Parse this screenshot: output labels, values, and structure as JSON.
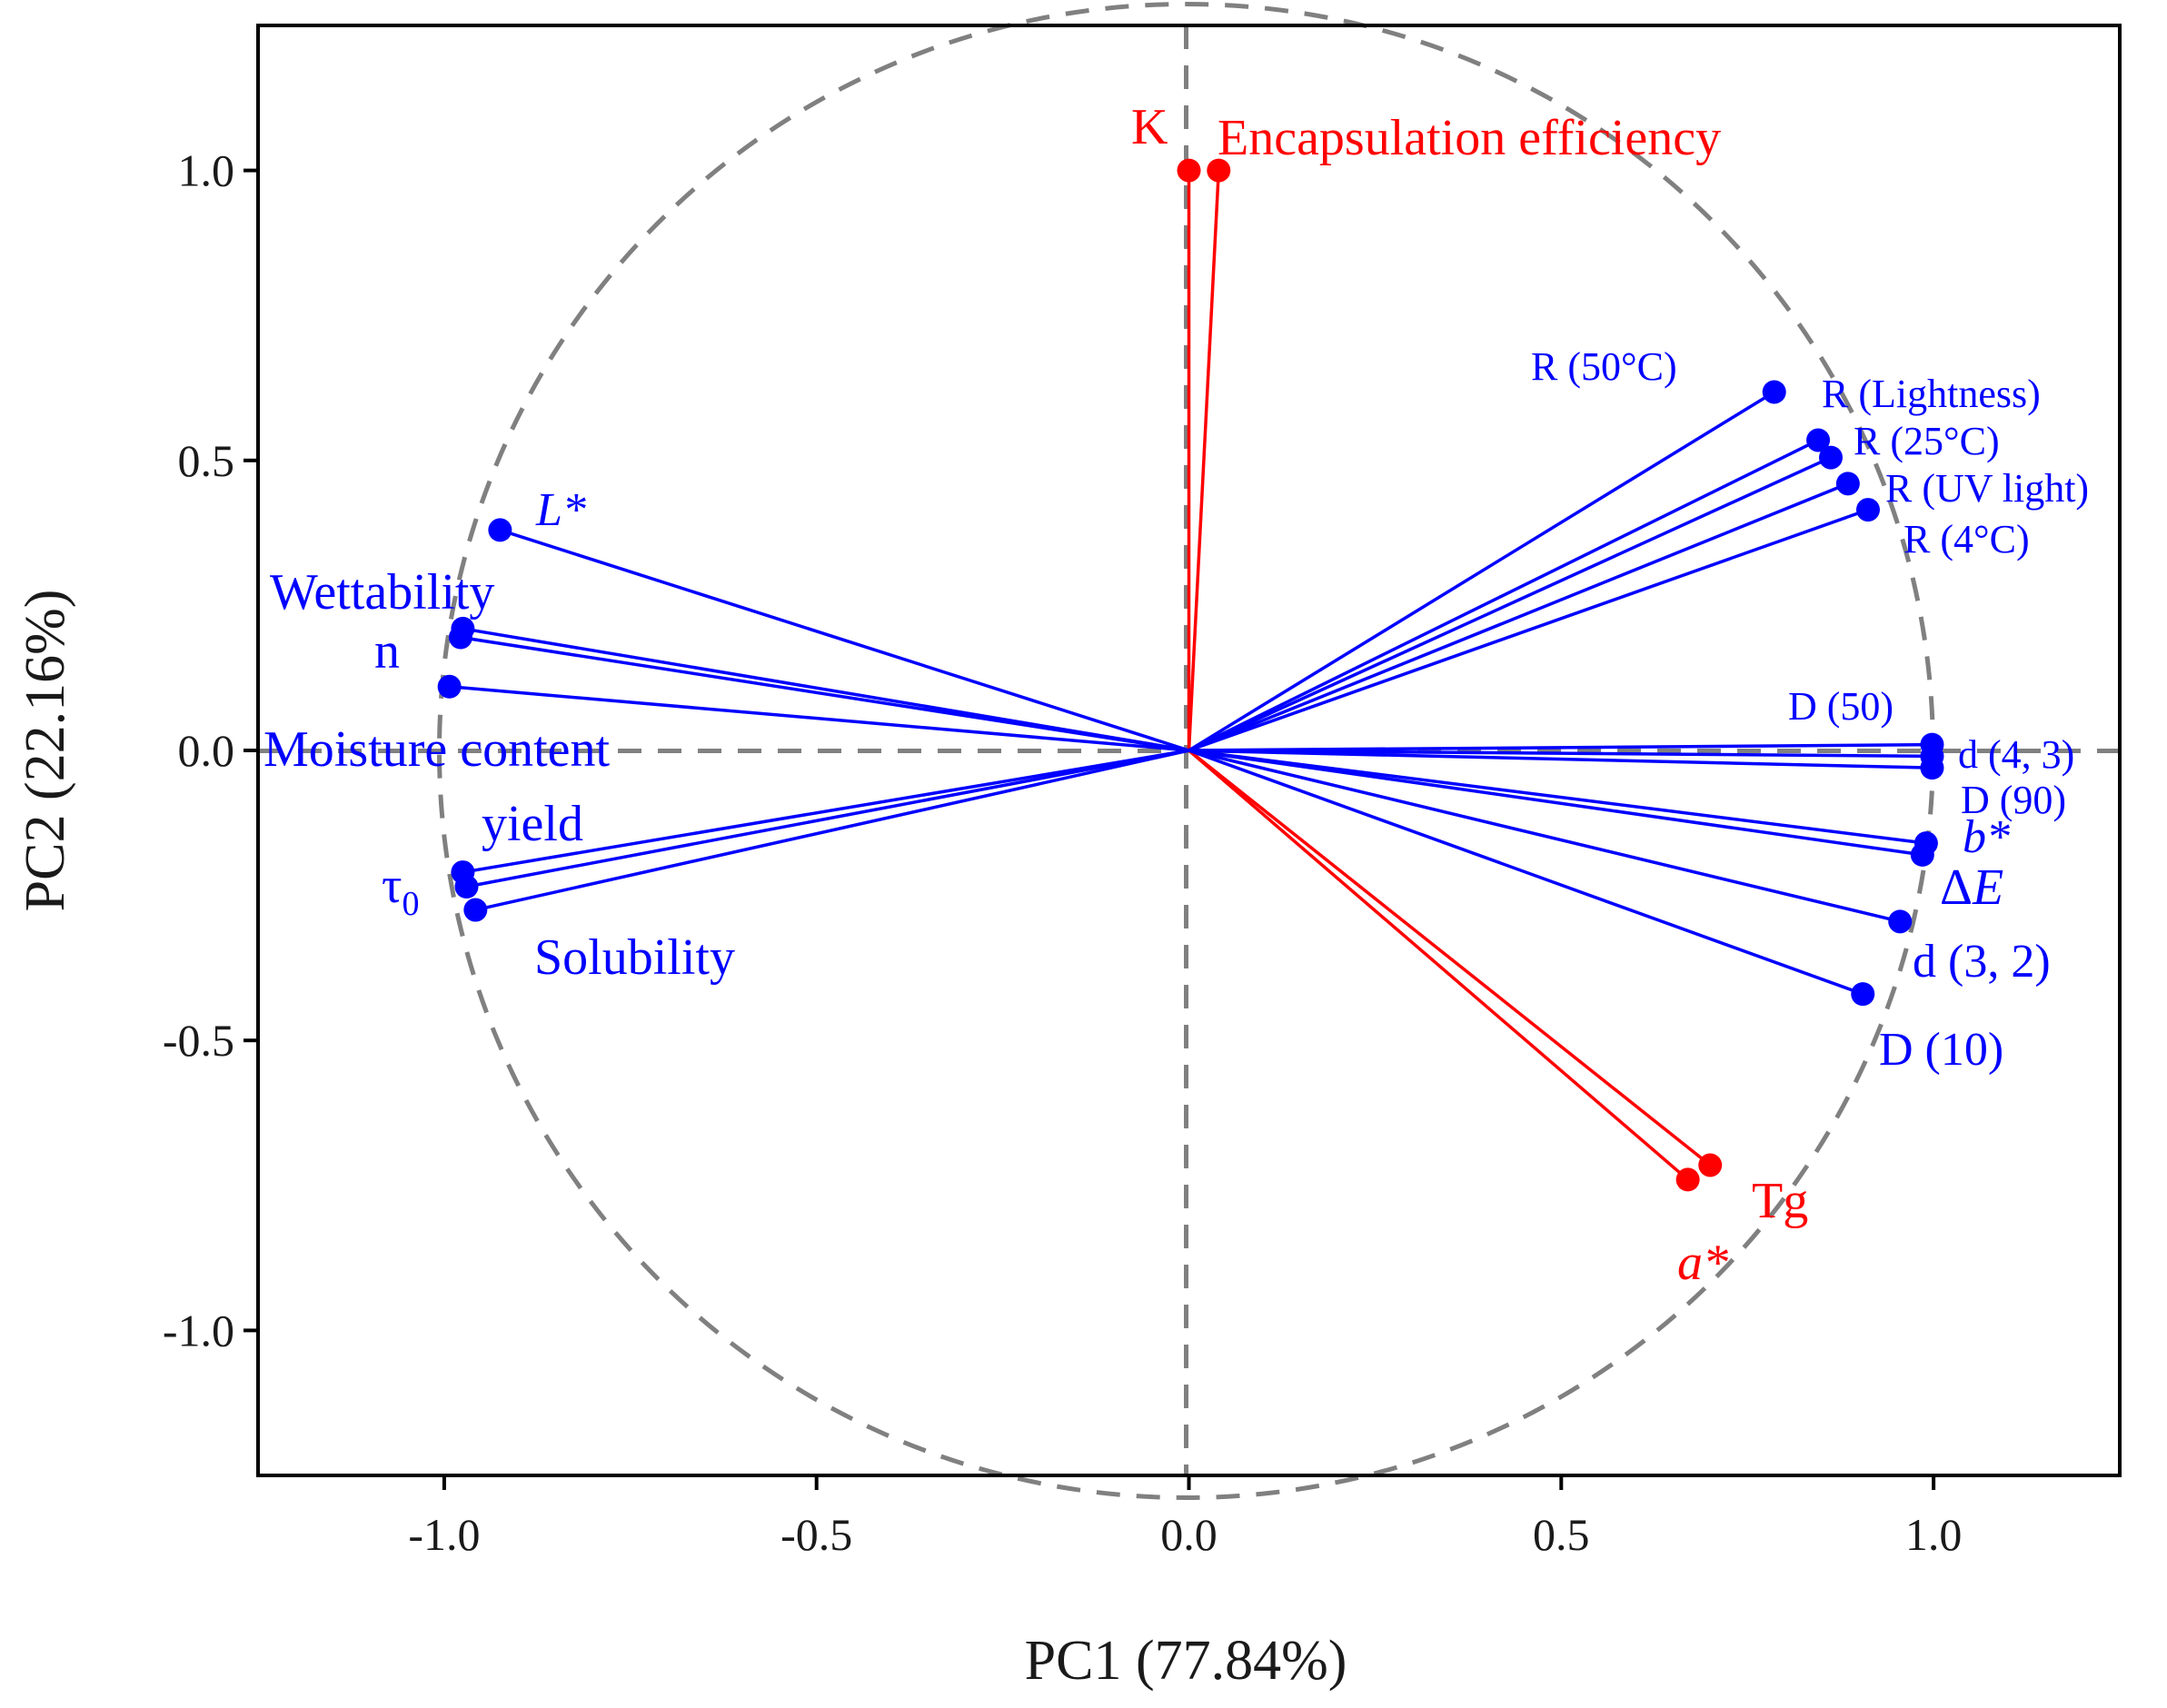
{
  "chart_data": {
    "type": "scatter",
    "subtype": "pca-loading-plot",
    "xlabel": "PC1 (77.84%)",
    "ylabel": "PC2 (22.16%)",
    "xlim": [
      -1.25,
      1.25
    ],
    "ylim": [
      -1.25,
      1.25
    ],
    "xticks": [
      -1.0,
      -0.5,
      0.0,
      0.5,
      1.0
    ],
    "yticks": [
      -1.0,
      -0.5,
      0.0,
      0.5,
      1.0
    ],
    "xtick_labels": [
      "-1.0",
      "-0.5",
      "0.0",
      "0.5",
      "1.0"
    ],
    "ytick_labels": [
      "-1.0",
      "-0.5",
      "0.0",
      "0.5",
      "1.0"
    ],
    "unit_circle": true,
    "colors": {
      "group_a": "#ff0000",
      "group_b": "#0000ff",
      "reference": "#808080"
    },
    "series": [
      {
        "name": "red-variables",
        "color": "#ff0000",
        "points": [
          {
            "label": "K",
            "x": 0.0,
            "y": 1.0
          },
          {
            "label": "Encapsulation efficiency",
            "x": 0.04,
            "y": 1.0
          },
          {
            "label": "Tg",
            "x": 0.7,
            "y": -0.715
          },
          {
            "label": "a*",
            "x": 0.67,
            "y": -0.74,
            "italic": true
          }
        ]
      },
      {
        "name": "blue-variables",
        "color": "#0000ff",
        "points": [
          {
            "label": "R (50°C)",
            "x": 0.786,
            "y": 0.618
          },
          {
            "label": "R (Lightness)",
            "x": 0.845,
            "y": 0.535
          },
          {
            "label": "R (25°C)",
            "x": 0.862,
            "y": 0.505
          },
          {
            "label": "R (UV light)",
            "x": 0.885,
            "y": 0.46
          },
          {
            "label": "R (4°C)",
            "x": 0.912,
            "y": 0.415
          },
          {
            "label": "D (50)",
            "x": 0.998,
            "y": 0.01
          },
          {
            "label": "d (4, 3)",
            "x": 0.998,
            "y": -0.01
          },
          {
            "label": "D (90)",
            "x": 0.998,
            "y": -0.03
          },
          {
            "label": "b*",
            "x": 0.99,
            "y": -0.16,
            "italic": true
          },
          {
            "label": "ΔE",
            "x": 0.985,
            "y": -0.18,
            "italic_part": "E"
          },
          {
            "label": "d (3, 2)",
            "x": 0.955,
            "y": -0.295
          },
          {
            "label": "D (10)",
            "x": 0.905,
            "y": -0.42
          },
          {
            "label": "L*",
            "x": -0.925,
            "y": 0.38,
            "italic": true
          },
          {
            "label": "Wettability",
            "x": -0.975,
            "y": 0.21
          },
          {
            "label": "n",
            "x": -0.978,
            "y": 0.195
          },
          {
            "label": "Moisture content",
            "x": -0.993,
            "y": 0.11
          },
          {
            "label": "yield",
            "x": -0.975,
            "y": -0.21
          },
          {
            "label": "τ0",
            "x": -0.97,
            "y": -0.235
          },
          {
            "label": "Solubility",
            "x": -0.958,
            "y": -0.275
          }
        ]
      }
    ]
  }
}
